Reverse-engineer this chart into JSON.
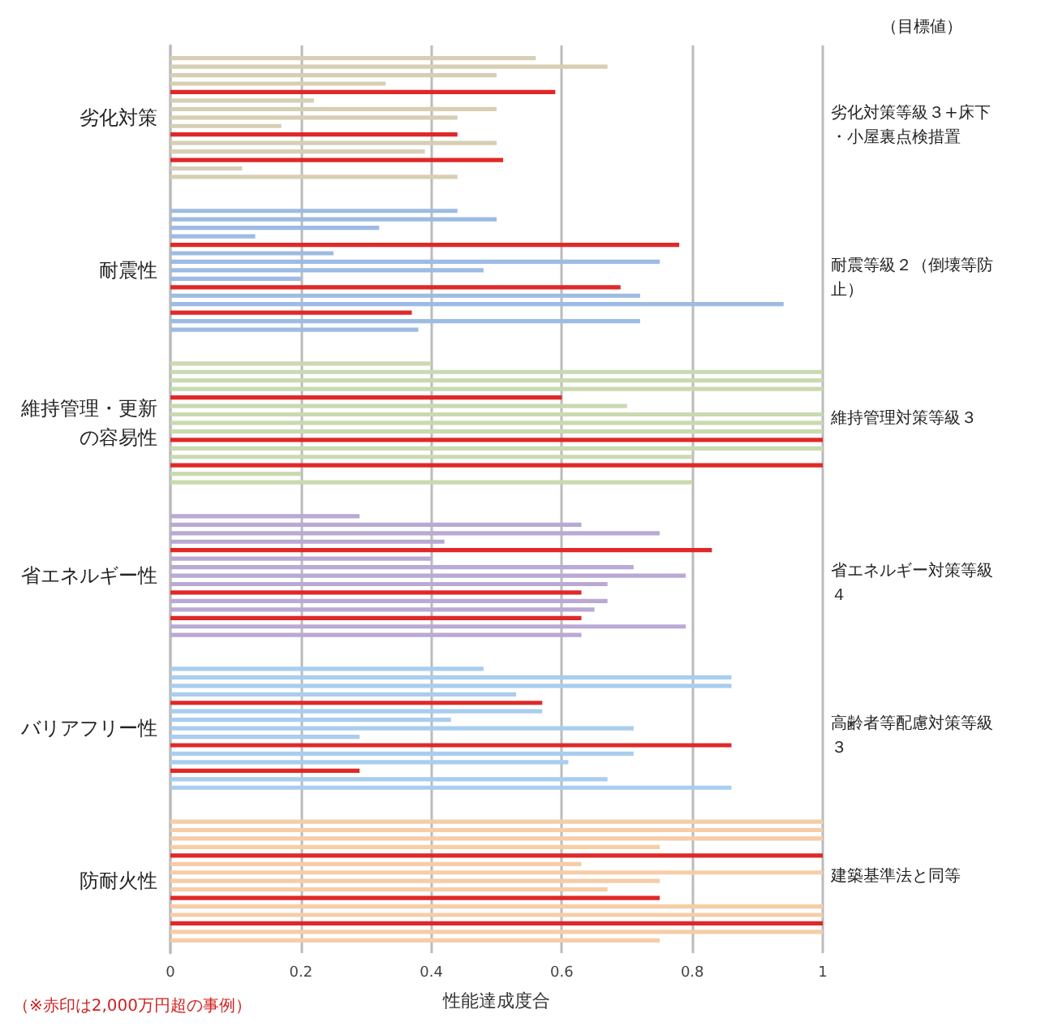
{
  "chart_data": {
    "type": "bar",
    "orientation": "horizontal",
    "xlabel": "性能達成度合",
    "grid": "x",
    "xlim": [
      0,
      1
    ],
    "xticks": [
      0,
      0.2,
      0.4,
      0.6,
      0.8,
      1
    ],
    "categories": [
      null,
      null,
      null,
      null,
      null,
      null,
      null,
      null,
      "劣化対策",
      null,
      null,
      null,
      null,
      null,
      null,
      null,
      null,
      null,
      null,
      null,
      null,
      null,
      null,
      null,
      null,
      null,
      "耐震性",
      null,
      null,
      null,
      null,
      null,
      null,
      null,
      null,
      null,
      null,
      null,
      null,
      null,
      null,
      null,
      null,
      null,
      "維持管理・更新の容易性",
      null,
      null,
      null,
      null,
      null,
      null,
      null,
      null,
      null,
      null,
      null,
      null,
      null,
      null,
      null,
      null,
      null,
      "省エネルギー性",
      null,
      null,
      null,
      null,
      null,
      null,
      null,
      null,
      null,
      null,
      null,
      null,
      null,
      null,
      null,
      null,
      null,
      "バリアフリー性",
      null,
      null,
      null,
      null,
      null,
      null,
      null,
      null,
      null,
      null,
      null,
      null,
      null,
      null,
      null,
      null,
      null,
      "防耐火性",
      null,
      null,
      null,
      null,
      null,
      null,
      null,
      null
    ],
    "values": [
      null,
      0.56,
      0.67,
      0.5,
      0.33,
      0.59,
      0.22,
      0.5,
      0.44,
      0.17,
      0.44,
      0.5,
      0.39,
      0.51,
      0.11,
      0.44,
      null,
      null,
      null,
      0.44,
      0.5,
      0.32,
      0.13,
      0.78,
      0.25,
      0.75,
      0.48,
      0.2,
      0.69,
      0.72,
      0.94,
      0.37,
      0.72,
      0.38,
      null,
      null,
      null,
      0.4,
      1,
      1,
      1,
      0.6,
      0.7,
      1,
      1,
      1,
      1,
      1,
      0.8,
      1,
      0.2,
      0.8,
      null,
      null,
      null,
      0.29,
      0.63,
      0.75,
      0.42,
      0.83,
      0.4,
      0.71,
      0.79,
      0.67,
      0.63,
      0.67,
      0.65,
      0.63,
      0.79,
      0.63,
      null,
      null,
      null,
      0.48,
      0.86,
      0.86,
      0.53,
      0.57,
      0.57,
      0.43,
      0.71,
      0.29,
      0.86,
      0.71,
      0.61,
      0.29,
      0.67,
      0.86,
      null,
      null,
      null,
      1,
      1,
      1,
      0.75,
      1,
      0.63,
      1,
      0.75,
      0.67,
      0.75,
      1,
      1,
      1,
      1,
      0.75,
      null
    ],
    "colors": [
      "#d6cfb4",
      "#d6cfb4",
      "#d6cfb4",
      "#d6cfb4",
      "#d6cfb4",
      "#e02828",
      "#d6cfb4",
      "#d6cfb4",
      "#d6cfb4",
      "#d6cfb4",
      "#e02828",
      "#d6cfb4",
      "#d6cfb4",
      "#e02828",
      "#d6cfb4",
      "#d6cfb4",
      "#d6cfb4",
      "#d6cfb4",
      "#d6cfb4",
      "#9dbbe3",
      "#9dbbe3",
      "#9dbbe3",
      "#9dbbe3",
      "#e02828",
      "#9dbbe3",
      "#9dbbe3",
      "#9dbbe3",
      "#9dbbe3",
      "#e02828",
      "#9dbbe3",
      "#9dbbe3",
      "#e02828",
      "#9dbbe3",
      "#9dbbe3",
      "#9dbbe3",
      "#9dbbe3",
      "#9dbbe3",
      "#c9dab0",
      "#c9dab0",
      "#c9dab0",
      "#c9dab0",
      "#e02828",
      "#c9dab0",
      "#c9dab0",
      "#c9dab0",
      "#c9dab0",
      "#e02828",
      "#c9dab0",
      "#c9dab0",
      "#e02828",
      "#c9dab0",
      "#c9dab0",
      "#c9dab0",
      "#c9dab0",
      "#c9dab0",
      "#b9a9d4",
      "#b9a9d4",
      "#b9a9d4",
      "#b9a9d4",
      "#e02828",
      "#b9a9d4",
      "#b9a9d4",
      "#b9a9d4",
      "#b9a9d4",
      "#e02828",
      "#b9a9d4",
      "#b9a9d4",
      "#e02828",
      "#b9a9d4",
      "#b9a9d4",
      "#b9a9d4",
      "#b9a9d4",
      "#b9a9d4",
      "#a9cdef",
      "#a9cdef",
      "#a9cdef",
      "#a9cdef",
      "#e02828",
      "#a9cdef",
      "#a9cdef",
      "#a9cdef",
      "#a9cdef",
      "#e02828",
      "#a9cdef",
      "#a9cdef",
      "#e02828",
      "#a9cdef",
      "#a9cdef",
      "#a9cdef",
      "#a9cdef",
      "#a9cdef",
      "#f6cda8",
      "#f6cda8",
      "#f6cda8",
      "#f6cda8",
      "#e02828",
      "#f6cda8",
      "#f6cda8",
      "#f6cda8",
      "#f6cda8",
      "#e02828",
      "#f6cda8",
      "#f6cda8",
      "#e02828",
      "#f6cda8",
      "#f6cda8",
      "#f6cda8"
    ],
    "annotations": [
      "（目標値）",
      "劣化対策等級３+床下・小屋裏点検措置",
      "耐震等級２（倒壊等防止）",
      "維持管理対策等級３",
      "省エネルギー対策等級４",
      "高齢者等配慮対策等級３",
      "建築基準法と同等",
      "（※赤印は2,000万円超の事例）"
    ]
  }
}
